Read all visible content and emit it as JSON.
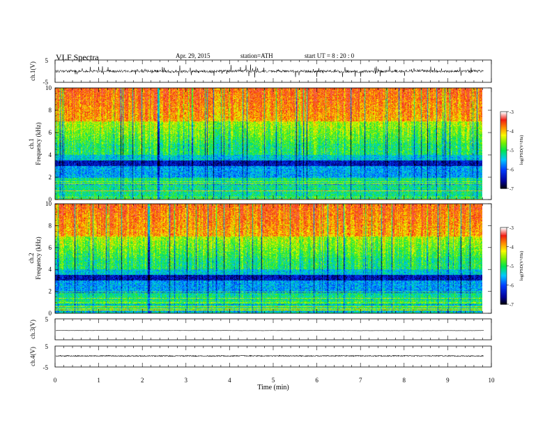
{
  "header": {
    "title": "VLF  Spectra",
    "date": "Apr. 29, 2015",
    "station": "station=ATH",
    "start": "start  UT  =   8  : 20 : 0"
  },
  "chart_data": [
    {
      "type": "line",
      "ylabel": "ch.1(V)",
      "ylim": [
        -5,
        5
      ],
      "yticks": [
        "5",
        "-5"
      ],
      "baseline_v": 0.0,
      "noise_v": 0.6,
      "spike_v": 2.5,
      "color": "#000000"
    },
    {
      "type": "heatmap",
      "channel": "ch.1",
      "ylabel": "Frequency  (kHz)",
      "ylim": [
        0,
        10
      ],
      "yticks": [
        "0",
        "2",
        "4",
        "6",
        "8",
        "10"
      ],
      "band_dark_khz": [
        3.0,
        3.5
      ],
      "colorbar": {
        "label": "log(PSD(V²/Hz)",
        "range": [
          -7,
          -3
        ],
        "ticks": [
          "-3",
          "-4",
          "-5",
          "-6",
          "-7"
        ]
      }
    },
    {
      "type": "heatmap",
      "channel": "ch.2",
      "ylabel": "Frequency  (kHz)",
      "ylim": [
        0,
        10
      ],
      "yticks": [
        "0",
        "2",
        "4",
        "6",
        "8",
        "10"
      ],
      "band_dark_khz": [
        3.0,
        3.5
      ],
      "colorbar": {
        "label": "log(PSD(V²/Hz)",
        "range": [
          -7,
          -3
        ],
        "ticks": [
          "-3",
          "-4",
          "-5",
          "-6",
          "-7"
        ]
      }
    },
    {
      "type": "line",
      "ylabel": "ch.3(V)",
      "ylim": [
        -5,
        5
      ],
      "yticks": [
        "5",
        ""
      ],
      "baseline_v": -0.6,
      "noise_v": 0.02,
      "spike_v": 0,
      "color": "#000000"
    },
    {
      "type": "line",
      "ylabel": "ch.4(V)",
      "ylim": [
        -5,
        5
      ],
      "yticks": [
        "5",
        "-5"
      ],
      "baseline_v": 0.3,
      "noise_v": 0.25,
      "spike_v": 0,
      "color": "#000000"
    }
  ],
  "xaxis": {
    "xlabel": "Time  (min)",
    "xlim": [
      0,
      10
    ],
    "data_end_min": 9.83,
    "ticks": [
      "0",
      "1",
      "2",
      "3",
      "4",
      "5",
      "6",
      "7",
      "8",
      "9",
      "10"
    ]
  }
}
